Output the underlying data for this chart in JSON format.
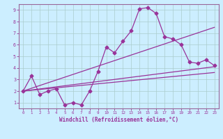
{
  "xlabel": "Windchill (Refroidissement éolien,°C)",
  "bg_color": "#cceeff",
  "grid_color": "#aacccc",
  "line_color": "#993399",
  "spine_color": "#996699",
  "xlim": [
    -0.5,
    23.5
  ],
  "ylim": [
    0.5,
    9.5
  ],
  "xticks": [
    0,
    1,
    2,
    3,
    4,
    5,
    6,
    7,
    8,
    9,
    10,
    11,
    12,
    13,
    14,
    15,
    16,
    17,
    18,
    19,
    20,
    21,
    22,
    23
  ],
  "yticks": [
    1,
    2,
    3,
    4,
    5,
    6,
    7,
    8,
    9
  ],
  "line1_x": [
    0,
    1,
    2,
    3,
    4,
    5,
    6,
    7,
    8,
    9,
    10,
    11,
    12,
    13,
    14,
    15,
    16,
    17,
    18,
    19,
    20,
    21,
    22,
    23
  ],
  "line1_y": [
    2.0,
    3.3,
    1.7,
    2.0,
    2.2,
    0.8,
    1.0,
    0.8,
    2.0,
    3.7,
    5.8,
    5.3,
    6.3,
    7.2,
    9.1,
    9.2,
    8.7,
    6.7,
    6.5,
    6.0,
    4.5,
    4.4,
    4.7,
    4.2
  ],
  "line2_x": [
    0,
    23
  ],
  "line2_y": [
    2.0,
    4.1
  ],
  "line3_x": [
    0,
    23
  ],
  "line3_y": [
    2.0,
    3.6
  ],
  "line4_x": [
    0,
    23
  ],
  "line4_y": [
    2.0,
    7.5
  ]
}
